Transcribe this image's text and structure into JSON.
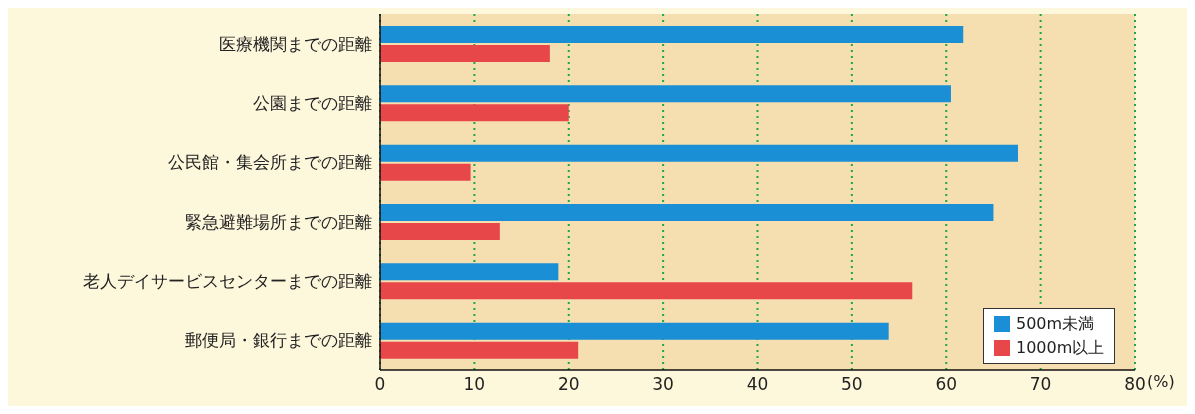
{
  "chart_data": {
    "type": "bar",
    "orientation": "horizontal",
    "categories": [
      "医療機関までの距離",
      "公園までの距離",
      "公民館・集会所までの距離",
      "緊急避難場所までの距離",
      "老人デイサービスセンターまでの距離",
      "郵便局・銀行までの距離"
    ],
    "series": [
      {
        "name": "500m未満",
        "color": "#1a8fd6",
        "values": [
          61.8,
          60.5,
          67.6,
          65.0,
          18.9,
          53.9
        ]
      },
      {
        "name": "1000m以上",
        "color": "#e8474a",
        "values": [
          18.0,
          20.0,
          9.6,
          12.7,
          56.4,
          21.0
        ]
      }
    ],
    "xlabel": "(%)",
    "xlim": [
      0,
      80
    ],
    "xticks": [
      0,
      10,
      20,
      30,
      40,
      50,
      60,
      70,
      80
    ],
    "grid": "x",
    "legend": "bottom right"
  }
}
